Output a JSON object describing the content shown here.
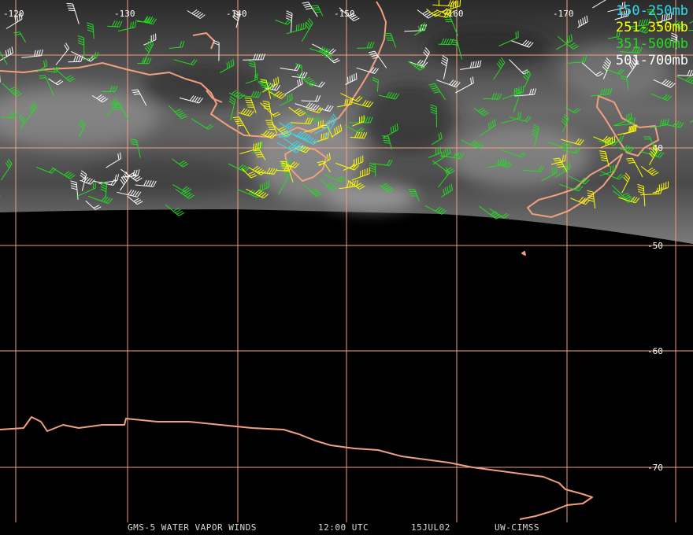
{
  "colors": {
    "background": "#000000",
    "grid": "#f0a080",
    "coast": "#f0a080",
    "level_150_250": "#33ddee",
    "level_251_350": "#ffff00",
    "level_351_500": "#22dd22",
    "level_501_700": "#ffffff"
  },
  "legend": [
    {
      "label": "150-250mb",
      "color": "#33ddee"
    },
    {
      "label": "251-350mb",
      "color": "#ffff00"
    },
    {
      "label": "351-500mb",
      "color": "#22dd22"
    },
    {
      "label": "501-700mb",
      "color": "#ffffff"
    }
  ],
  "longitude_labels": [
    "-120",
    "-130",
    "-140",
    "-150",
    "-160",
    "-170"
  ],
  "latitude_labels": [
    "-40",
    "-50",
    "-60",
    "-70"
  ],
  "footer": {
    "product": "GMS-5 WATER VAPOR WINDS",
    "time": "12:00 UTC",
    "date": "15JUL02",
    "source": "UW-CIMSS"
  }
}
